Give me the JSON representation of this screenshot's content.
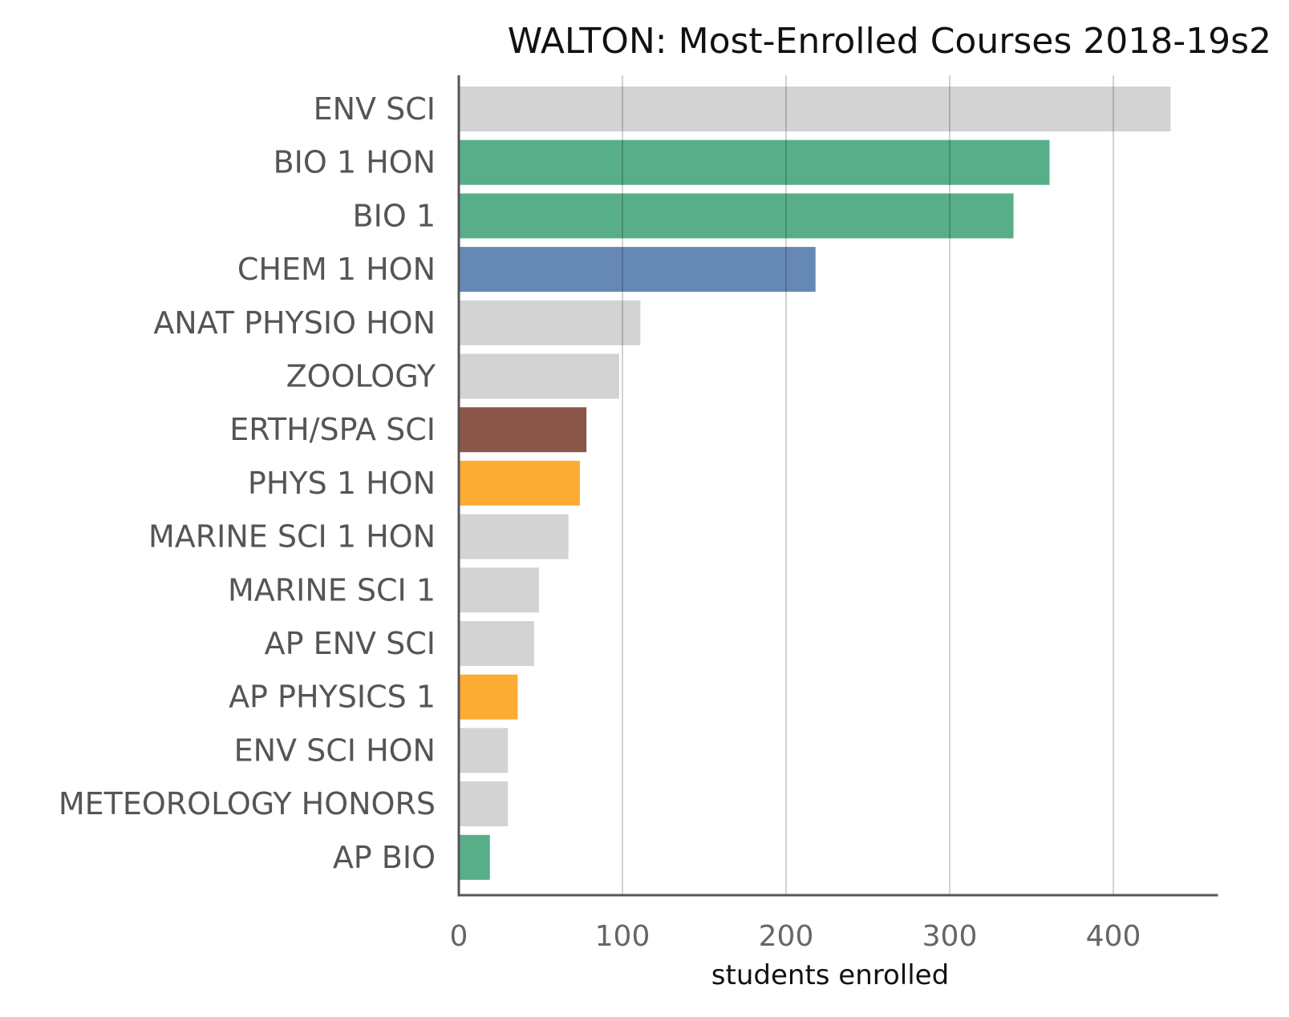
{
  "chart_data": {
    "type": "bar",
    "orientation": "horizontal",
    "title": "WALTON: Most-Enrolled Courses 2018-19s2",
    "xlabel": "students enrolled",
    "ylabel": "",
    "xlim": [
      0,
      460
    ],
    "xticks": [
      0,
      100,
      200,
      300,
      400
    ],
    "grid": "vertical",
    "categories": [
      "ENV SCI",
      "BIO 1 HON",
      "BIO 1",
      "CHEM 1 HON",
      "ANAT PHYSIO HON",
      "ZOOLOGY",
      "ERTH/SPA SCI",
      "PHYS 1 HON",
      "MARINE SCI 1 HON",
      "MARINE SCI 1",
      "AP ENV SCI",
      "AP PHYSICS 1",
      "ENV SCI HON",
      "METEOROLOGY HONORS",
      "AP BIO"
    ],
    "values": [
      435,
      361,
      339,
      218,
      111,
      98,
      78,
      74,
      67,
      49,
      46,
      36,
      30,
      30,
      19
    ],
    "colors": [
      "#d3d3d3",
      "#57ae89",
      "#57ae89",
      "#6589b4",
      "#d3d3d3",
      "#d3d3d3",
      "#8a5648",
      "#fcac33",
      "#d3d3d3",
      "#d3d3d3",
      "#d3d3d3",
      "#fcac33",
      "#d3d3d3",
      "#d3d3d3",
      "#57ae89"
    ]
  }
}
